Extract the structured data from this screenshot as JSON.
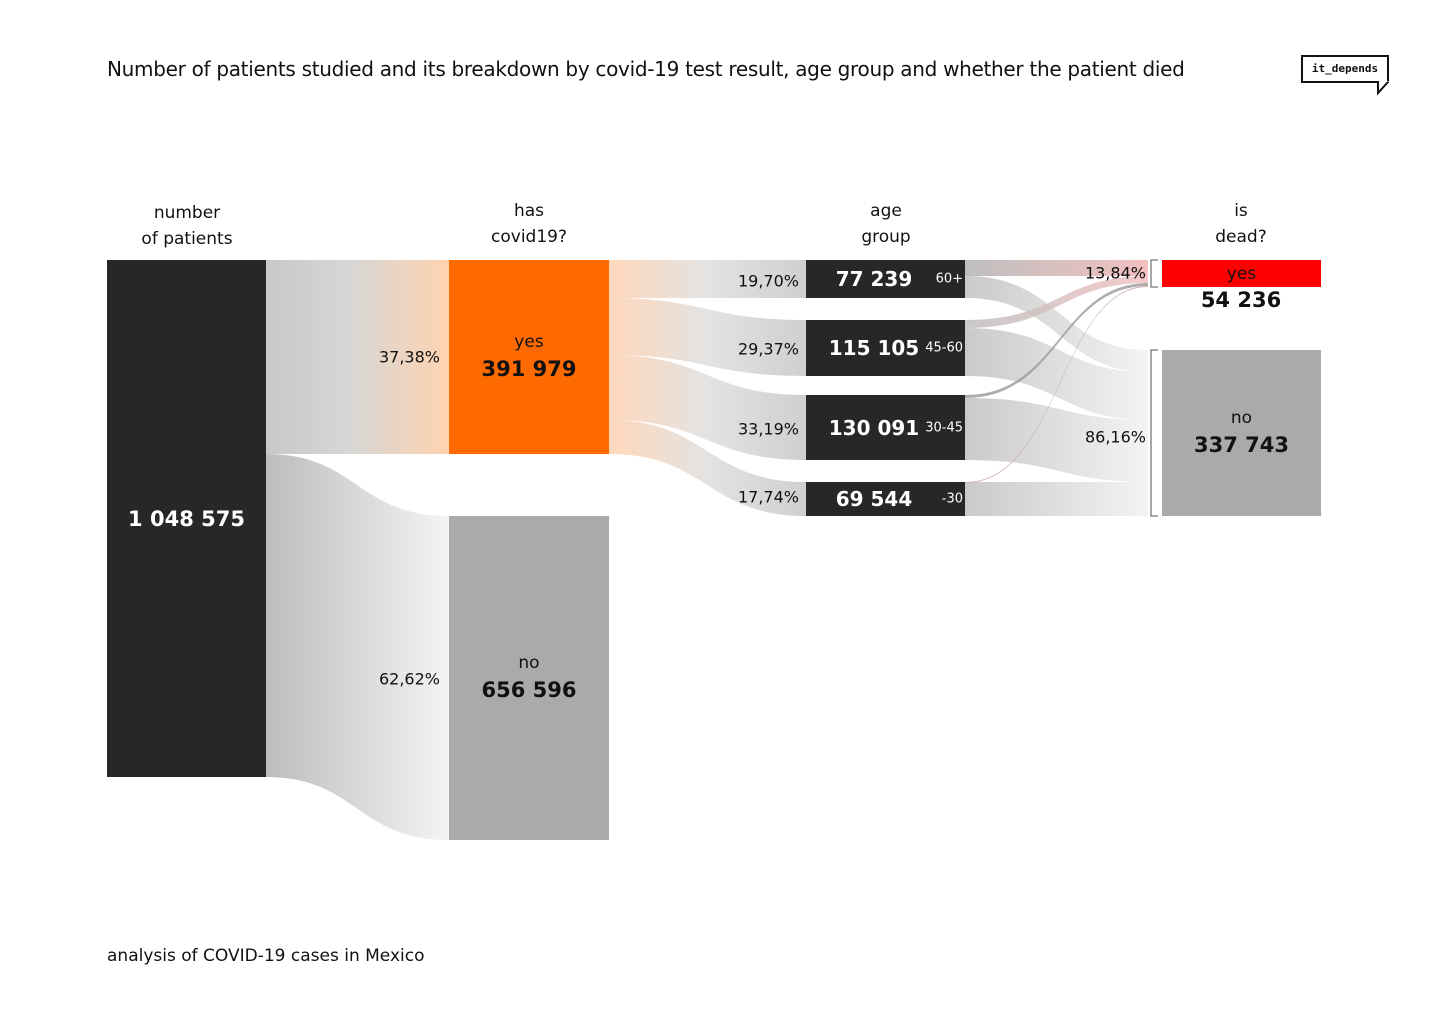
{
  "title": "Number of patients studied and its breakdown by covid-19 test result, age group and whether the patient died",
  "logo": "it_depends",
  "footer": "analysis of COVID-19 cases in Mexico",
  "columns": {
    "patients": [
      "number",
      "of patients"
    ],
    "covid": [
      "has",
      "covid19?"
    ],
    "age": [
      "age",
      "group"
    ],
    "dead": [
      "is",
      "dead?"
    ]
  },
  "colors": {
    "node_dark": "#272727",
    "covid_yes": "#ff6a00",
    "node_gray": "#aaaaaa",
    "dead_yes": "#ff0000",
    "flow_gray": "#c8c8c8"
  },
  "nodes": {
    "total": {
      "value": "1 048 575"
    },
    "covid_yes": {
      "label": "yes",
      "value": "391 979",
      "share": "37,38%"
    },
    "covid_no": {
      "label": "no",
      "value": "656 596",
      "share": "62,62%"
    },
    "ages": [
      {
        "group": "60+",
        "value": "77 239",
        "share": "19,70%"
      },
      {
        "group": "45-60",
        "value": "115 105",
        "share": "29,37%"
      },
      {
        "group": "30-45",
        "value": "130 091",
        "share": "33,19%"
      },
      {
        "group": "-30",
        "value": "69 544",
        "share": "17,74%"
      }
    ],
    "dead_yes": {
      "label": "yes",
      "value": "54 236",
      "share": "13,84%"
    },
    "dead_no": {
      "label": "no",
      "value": "337 743",
      "share": "86,16%"
    }
  },
  "chart_data": {
    "type": "sankey",
    "title": "Number of patients studied and its breakdown by covid-19 test result, age group and whether the patient died",
    "nodes": [
      "number of patients",
      "covid yes",
      "covid no",
      "60+",
      "45-60",
      "30-45",
      "-30",
      "dead yes",
      "dead no"
    ],
    "links": [
      {
        "source": "number of patients",
        "target": "covid yes",
        "value": 391979
      },
      {
        "source": "number of patients",
        "target": "covid no",
        "value": 656596
      },
      {
        "source": "covid yes",
        "target": "60+",
        "value": 77239
      },
      {
        "source": "covid yes",
        "target": "45-60",
        "value": 115105
      },
      {
        "source": "covid yes",
        "target": "30-45",
        "value": 130091
      },
      {
        "source": "covid yes",
        "target": "-30",
        "value": 69544
      },
      {
        "source": "age groups",
        "target": "dead yes",
        "value": 54236
      },
      {
        "source": "age groups",
        "target": "dead no",
        "value": 337743
      }
    ]
  }
}
